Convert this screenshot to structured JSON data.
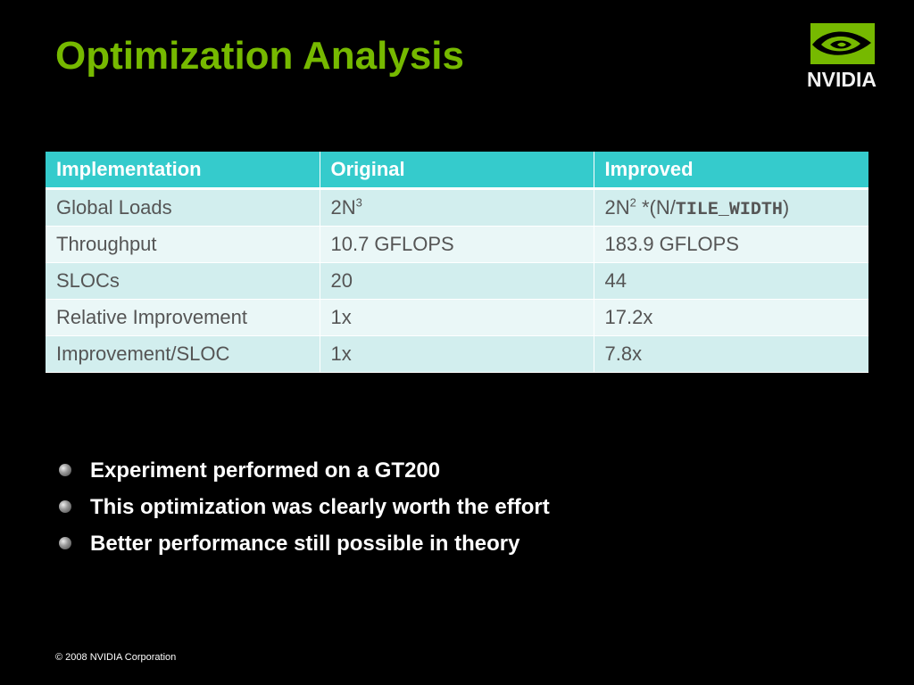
{
  "slide": {
    "title": "Optimization Analysis",
    "logo_text": "NVIDIA",
    "copyright": "© 2008 NVIDIA Corporation"
  },
  "table": {
    "headers": [
      "Implementation",
      "Original",
      "Improved"
    ],
    "rows": [
      {
        "label": "Global Loads",
        "original_base": "2N",
        "original_sup": "3",
        "improved_base": "2N",
        "improved_sup": "2",
        "improved_mid": " *(N/",
        "improved_code": "TILE_WIDTH",
        "improved_end": ")"
      },
      {
        "label": "Throughput",
        "original": "10.7 GFLOPS",
        "improved": "183.9 GFLOPS"
      },
      {
        "label": "SLOCs",
        "original": "20",
        "improved": "44"
      },
      {
        "label": "Relative Improvement",
        "original": "1x",
        "improved": "17.2x"
      },
      {
        "label": "Improvement/SLOC",
        "original": "1x",
        "improved": "7.8x"
      }
    ]
  },
  "bullets": [
    "Experiment performed on a GT200",
    "This optimization was clearly worth the effort",
    "Better performance still possible in theory"
  ],
  "colors": {
    "title": "#76b900",
    "header_bg": "#35cbcc",
    "row_odd": "#d2eeee",
    "row_even": "#eaf7f7"
  }
}
